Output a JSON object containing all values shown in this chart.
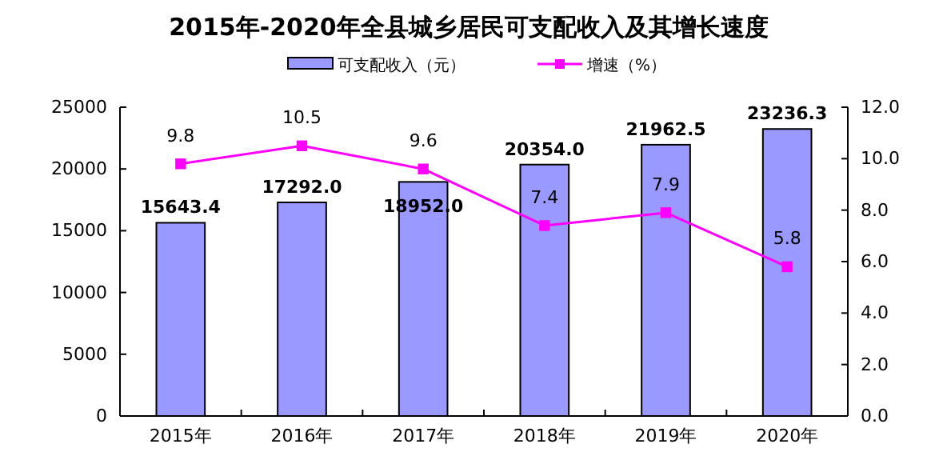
{
  "chart_data": {
    "type": "bar",
    "title": "2015年-2020年全县城乡居民可支配收入及其增长速度",
    "categories": [
      "2015年",
      "2016年",
      "2017年",
      "2018年",
      "2019年",
      "2020年"
    ],
    "series": [
      {
        "name": "可支配收入（元）",
        "color": "#9999ff",
        "values": [
          15643.4,
          17292,
          18952,
          20354,
          21962.5,
          23236.3
        ],
        "value_labels": [
          "15643.4",
          "17292.0",
          "18952.0",
          "20354.0",
          "21962.5",
          "23236.3"
        ]
      },
      {
        "name": "增速（%）",
        "type": "line",
        "axis": "y2",
        "color": "#ff00ff",
        "marker": "square",
        "values": [
          9.8,
          10.5,
          9.6,
          7.4,
          7.9,
          5.8
        ]
      }
    ],
    "ylim": [
      0,
      25000
    ],
    "yticks": [
      0,
      5000,
      10000,
      15000,
      20000,
      25000
    ],
    "y2lim": [
      0,
      12
    ],
    "y2ticks": [
      {
        "value": 0,
        "label": "0.0"
      },
      {
        "value": 2,
        "label": "2.0"
      },
      {
        "value": 4,
        "label": "4.0"
      },
      {
        "value": 6,
        "label": "6.0"
      },
      {
        "value": 8,
        "label": "8.0"
      },
      {
        "value": 10,
        "label": "10.0"
      },
      {
        "value": 12,
        "label": "12.0"
      }
    ],
    "data_labels": true,
    "grid": false,
    "legend": "top"
  }
}
